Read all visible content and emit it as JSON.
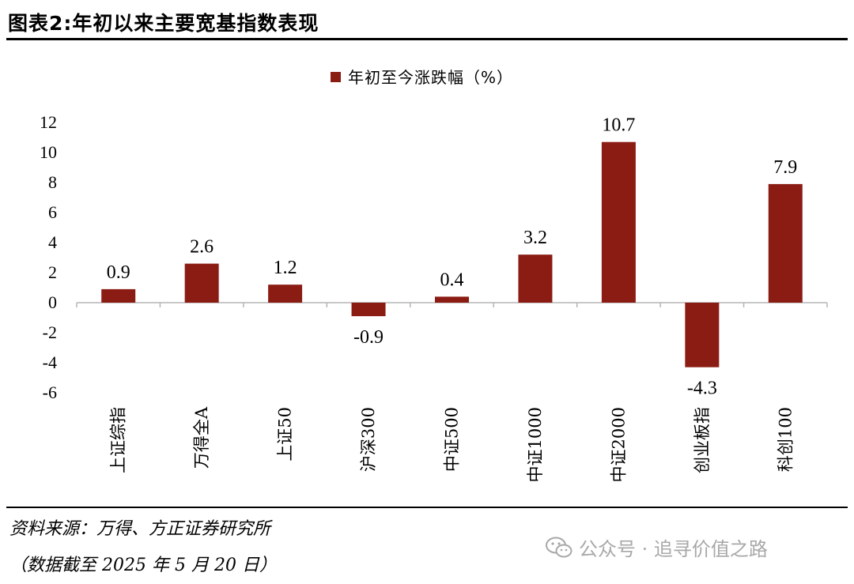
{
  "header": {
    "title": "图表2:年初以来主要宽基指数表现"
  },
  "chart_data": {
    "type": "bar",
    "categories": [
      "上证综指",
      "万得全A",
      "上证50",
      "沪深300",
      "中证500",
      "中证1000",
      "中证2000",
      "创业板指",
      "科创100"
    ],
    "series": [
      {
        "name": "年初至今涨跌幅（%）",
        "values": [
          0.9,
          2.6,
          1.2,
          -0.9,
          0.4,
          3.2,
          10.7,
          -4.3,
          7.9
        ]
      }
    ],
    "value_labels": [
      "0.9",
      "2.6",
      "1.2",
      "-0.9",
      "0.4",
      "3.2",
      "10.7",
      "-4.3",
      "7.9"
    ],
    "y_ticks": [
      "12",
      "10",
      "8",
      "6",
      "4",
      "2",
      "0",
      "-2",
      "-4",
      "-6"
    ],
    "ylim": [
      -6,
      12
    ],
    "legend_position": "top-center",
    "grid": false,
    "bar_color": "#8b1c13"
  },
  "footer": {
    "source": "资料来源：万得、方正证券研究所",
    "note": "（数据截至 2025 年 5 月 20 日）",
    "watermark": "公众号 · 追寻价值之路",
    "watermark_icon": "wechat-icon"
  }
}
